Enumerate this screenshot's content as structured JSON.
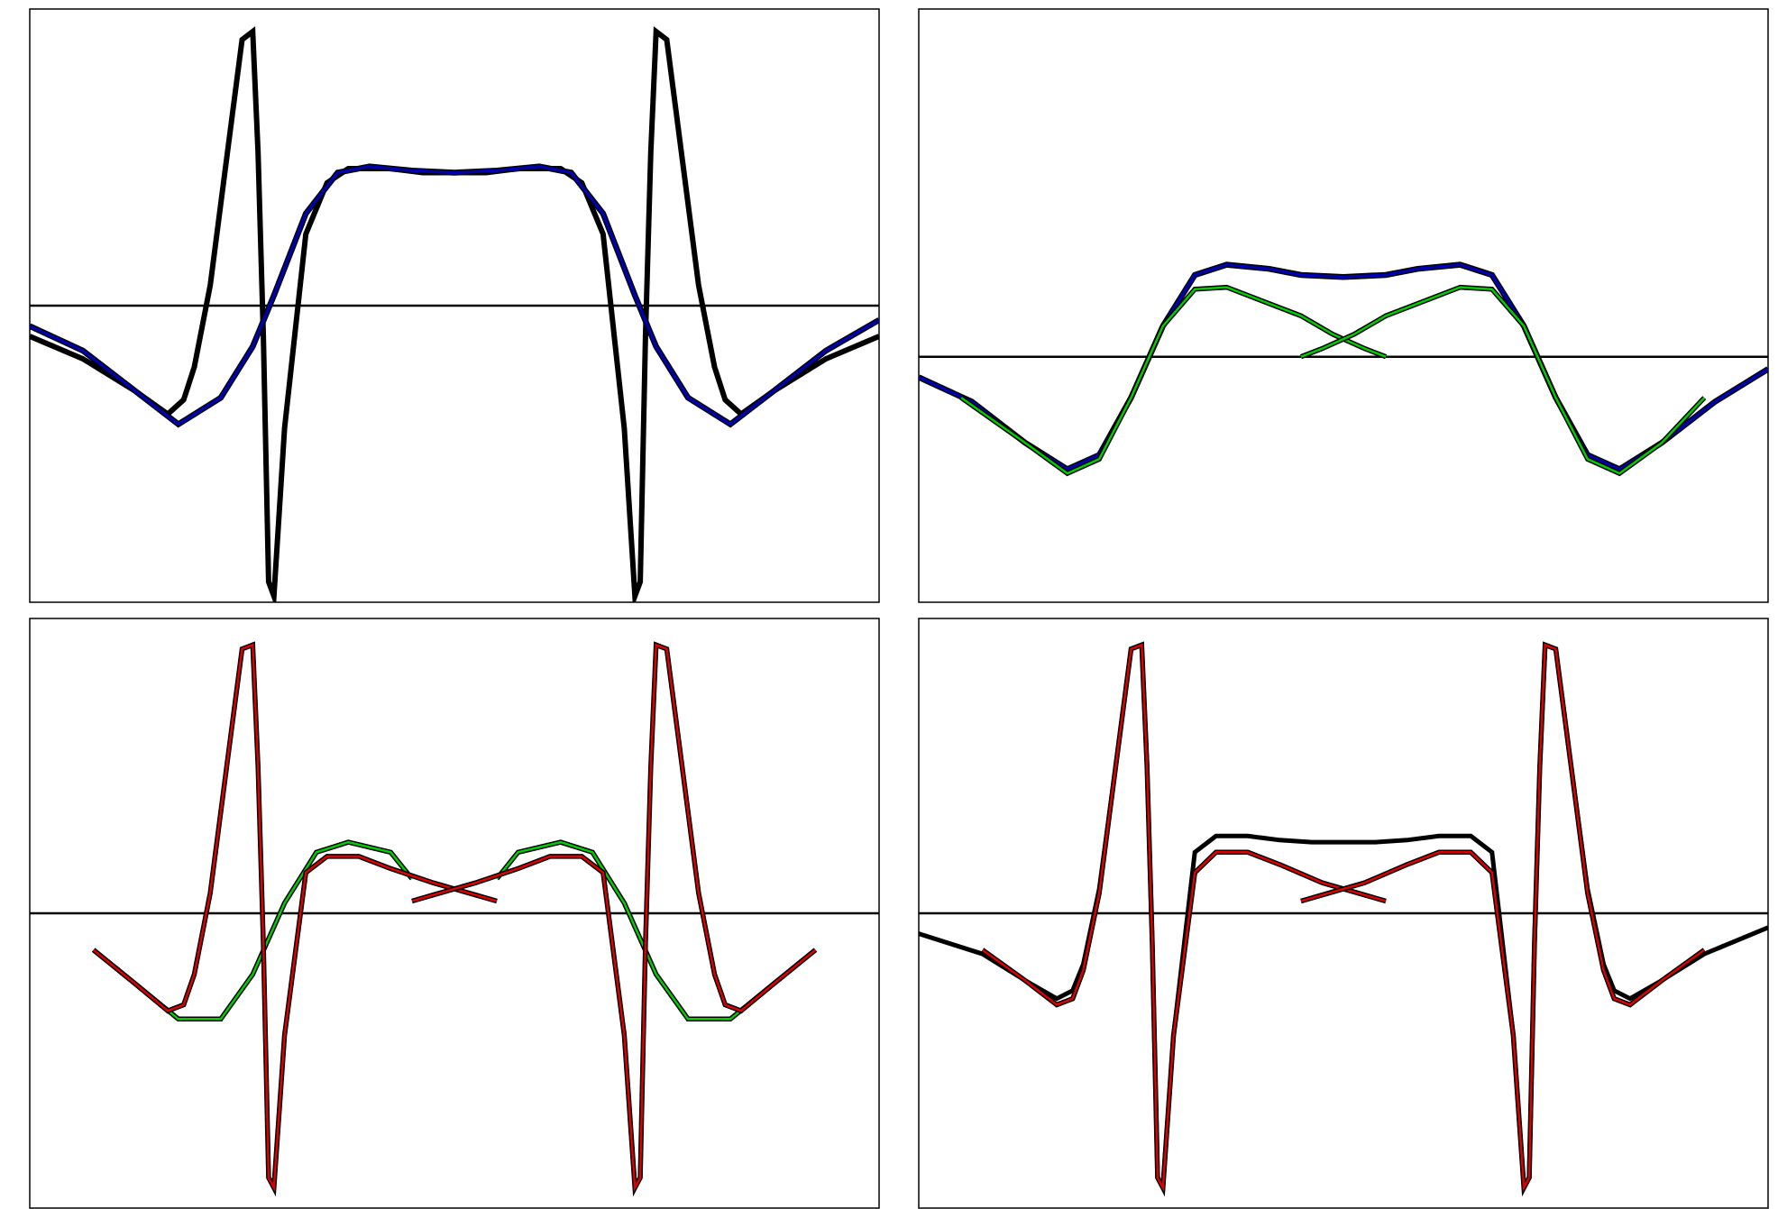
{
  "chart_data": [
    {
      "type": "line",
      "grid": false,
      "xlim": [
        -4,
        4
      ],
      "ylim": [
        -1.45,
        1.45
      ],
      "zero_line": true,
      "series": [
        {
          "color": "#000000",
          "stroke": "#000000",
          "width": 6,
          "points": [
            [
              -4,
              -0.15
            ],
            [
              -3.5,
              -0.26
            ],
            [
              -3,
              -0.42
            ],
            [
              -2.7,
              -0.53
            ],
            [
              -2.55,
              -0.46
            ],
            [
              -2.45,
              -0.3
            ],
            [
              -2.3,
              0.1
            ],
            [
              -2.15,
              0.7
            ],
            [
              -2.0,
              1.3
            ],
            [
              -1.9,
              1.34
            ],
            [
              -1.85,
              0.75
            ],
            [
              -1.8,
              -0.15
            ],
            [
              -1.75,
              -1.35
            ],
            [
              -1.7,
              -1.42
            ],
            [
              -1.6,
              -0.6
            ],
            [
              -1.4,
              0.35
            ],
            [
              -1.2,
              0.6
            ],
            [
              -1,
              0.67
            ],
            [
              -0.6,
              0.67
            ],
            [
              -0.3,
              0.65
            ],
            [
              0,
              0.65
            ],
            [
              0.3,
              0.65
            ],
            [
              0.6,
              0.67
            ],
            [
              1,
              0.67
            ],
            [
              1.2,
              0.6
            ],
            [
              1.4,
              0.35
            ],
            [
              1.6,
              -0.6
            ],
            [
              1.7,
              -1.42
            ],
            [
              1.75,
              -1.35
            ],
            [
              1.8,
              -0.15
            ],
            [
              1.85,
              0.75
            ],
            [
              1.9,
              1.34
            ],
            [
              2.0,
              1.3
            ],
            [
              2.15,
              0.7
            ],
            [
              2.3,
              0.1
            ],
            [
              2.45,
              -0.3
            ],
            [
              2.55,
              -0.46
            ],
            [
              2.7,
              -0.53
            ],
            [
              3,
              -0.42
            ],
            [
              3.5,
              -0.26
            ],
            [
              4,
              -0.15
            ]
          ]
        },
        {
          "color": "#0000aa",
          "stroke": "#000000",
          "width": 5,
          "points": [
            [
              -4,
              -0.1
            ],
            [
              -3.5,
              -0.22
            ],
            [
              -3,
              -0.42
            ],
            [
              -2.6,
              -0.58
            ],
            [
              -2.2,
              -0.45
            ],
            [
              -1.9,
              -0.2
            ],
            [
              -1.7,
              0.05
            ],
            [
              -1.4,
              0.45
            ],
            [
              -1.1,
              0.65
            ],
            [
              -0.8,
              0.68
            ],
            [
              -0.4,
              0.66
            ],
            [
              0,
              0.65
            ],
            [
              0.4,
              0.66
            ],
            [
              0.8,
              0.68
            ],
            [
              1.1,
              0.65
            ],
            [
              1.4,
              0.45
            ],
            [
              1.7,
              0.05
            ],
            [
              1.9,
              -0.2
            ],
            [
              2.2,
              -0.45
            ],
            [
              2.6,
              -0.58
            ],
            [
              3,
              -0.42
            ],
            [
              3.5,
              -0.22
            ],
            [
              4,
              -0.07
            ]
          ]
        }
      ]
    },
    {
      "type": "line",
      "grid": false,
      "xlim": [
        -4,
        4
      ],
      "ylim": [
        -1.2,
        1.7
      ],
      "zero_line": true,
      "series": [
        {
          "color": "#0000aa",
          "stroke": "#000000",
          "width": 5,
          "points": [
            [
              -4,
              -0.1
            ],
            [
              -3.5,
              -0.22
            ],
            [
              -3,
              -0.42
            ],
            [
              -2.6,
              -0.55
            ],
            [
              -2.3,
              -0.48
            ],
            [
              -2.0,
              -0.2
            ],
            [
              -1.7,
              0.15
            ],
            [
              -1.4,
              0.4
            ],
            [
              -1.1,
              0.45
            ],
            [
              -0.7,
              0.43
            ],
            [
              -0.4,
              0.4
            ],
            [
              0,
              0.39
            ],
            [
              0.4,
              0.4
            ],
            [
              0.7,
              0.43
            ],
            [
              1.1,
              0.45
            ],
            [
              1.4,
              0.4
            ],
            [
              1.7,
              0.15
            ],
            [
              2.0,
              -0.2
            ],
            [
              2.3,
              -0.48
            ],
            [
              2.6,
              -0.55
            ],
            [
              3,
              -0.42
            ],
            [
              3.5,
              -0.22
            ],
            [
              4,
              -0.06
            ]
          ]
        },
        {
          "color": "#00cc00",
          "stroke": "#000000",
          "width": 4,
          "points": [
            [
              -3.6,
              -0.2
            ],
            [
              -3,
              -0.42
            ],
            [
              -2.6,
              -0.57
            ],
            [
              -2.3,
              -0.5
            ],
            [
              -2.0,
              -0.2
            ],
            [
              -1.7,
              0.15
            ],
            [
              -1.4,
              0.33
            ],
            [
              -1.1,
              0.34
            ],
            [
              -0.8,
              0.28
            ],
            [
              -0.4,
              0.2
            ],
            [
              -0.1,
              0.11
            ],
            [
              0.2,
              0.04
            ],
            [
              0.4,
              0
            ]
          ]
        },
        {
          "color": "#00cc00",
          "stroke": "#000000",
          "width": 4,
          "points": [
            [
              -0.4,
              0
            ],
            [
              -0.2,
              0.04
            ],
            [
              0.1,
              0.11
            ],
            [
              0.4,
              0.2
            ],
            [
              0.8,
              0.28
            ],
            [
              1.1,
              0.34
            ],
            [
              1.4,
              0.33
            ],
            [
              1.7,
              0.15
            ],
            [
              2.0,
              -0.2
            ],
            [
              2.3,
              -0.5
            ],
            [
              2.6,
              -0.57
            ],
            [
              3,
              -0.42
            ],
            [
              3.4,
              -0.2
            ]
          ]
        }
      ]
    },
    {
      "type": "line",
      "grid": false,
      "xlim": [
        -4,
        4
      ],
      "ylim": [
        -1.45,
        1.45
      ],
      "zero_line": true,
      "series": [
        {
          "color": "#00cc00",
          "stroke": "#000000",
          "width": 4,
          "points": [
            [
              -3.4,
              -0.18
            ],
            [
              -3,
              -0.35
            ],
            [
              -2.6,
              -0.52
            ],
            [
              -2.2,
              -0.52
            ],
            [
              -1.9,
              -0.3
            ],
            [
              -1.6,
              0.05
            ],
            [
              -1.3,
              0.3
            ],
            [
              -1.0,
              0.35
            ],
            [
              -0.6,
              0.3
            ],
            [
              -0.4,
              0.17
            ]
          ]
        },
        {
          "color": "#00cc00",
          "stroke": "#000000",
          "width": 4,
          "points": [
            [
              0.4,
              0.17
            ],
            [
              0.6,
              0.3
            ],
            [
              1.0,
              0.35
            ],
            [
              1.3,
              0.3
            ],
            [
              1.6,
              0.05
            ],
            [
              1.9,
              -0.3
            ],
            [
              2.2,
              -0.52
            ],
            [
              2.6,
              -0.52
            ],
            [
              3,
              -0.35
            ],
            [
              3.4,
              -0.18
            ]
          ]
        },
        {
          "color": "#dd0000",
          "stroke": "#000000",
          "width": 4,
          "points": [
            [
              -3.4,
              -0.18
            ],
            [
              -3,
              -0.35
            ],
            [
              -2.7,
              -0.48
            ],
            [
              -2.55,
              -0.45
            ],
            [
              -2.45,
              -0.3
            ],
            [
              -2.3,
              0.1
            ],
            [
              -2.15,
              0.7
            ],
            [
              -2.0,
              1.3
            ],
            [
              -1.9,
              1.32
            ],
            [
              -1.85,
              0.72
            ],
            [
              -1.8,
              -0.15
            ],
            [
              -1.75,
              -1.3
            ],
            [
              -1.7,
              -1.35
            ],
            [
              -1.6,
              -0.6
            ],
            [
              -1.4,
              0.2
            ],
            [
              -1.2,
              0.28
            ],
            [
              -0.9,
              0.28
            ],
            [
              -0.6,
              0.22
            ],
            [
              -0.2,
              0.15
            ],
            [
              0.2,
              0.09
            ],
            [
              0.4,
              0.06
            ]
          ]
        },
        {
          "color": "#dd0000",
          "stroke": "#000000",
          "width": 4,
          "points": [
            [
              -0.4,
              0.06
            ],
            [
              -0.2,
              0.09
            ],
            [
              0.2,
              0.15
            ],
            [
              0.6,
              0.22
            ],
            [
              0.9,
              0.28
            ],
            [
              1.2,
              0.28
            ],
            [
              1.4,
              0.2
            ],
            [
              1.6,
              -0.6
            ],
            [
              1.7,
              -1.35
            ],
            [
              1.75,
              -1.3
            ],
            [
              1.8,
              -0.15
            ],
            [
              1.85,
              0.72
            ],
            [
              1.9,
              1.32
            ],
            [
              2.0,
              1.3
            ],
            [
              2.15,
              0.7
            ],
            [
              2.3,
              0.1
            ],
            [
              2.45,
              -0.3
            ],
            [
              2.55,
              -0.45
            ],
            [
              2.7,
              -0.48
            ],
            [
              3,
              -0.35
            ],
            [
              3.4,
              -0.18
            ]
          ]
        }
      ]
    },
    {
      "type": "line",
      "grid": false,
      "xlim": [
        -4,
        4
      ],
      "ylim": [
        -1.45,
        1.45
      ],
      "zero_line": true,
      "series": [
        {
          "color": "#000000",
          "stroke": "#000000",
          "width": 5,
          "points": [
            [
              -4,
              -0.1
            ],
            [
              -3.4,
              -0.2
            ],
            [
              -3,
              -0.33
            ],
            [
              -2.7,
              -0.42
            ],
            [
              -2.55,
              -0.38
            ],
            [
              -2.45,
              -0.25
            ],
            [
              -2.3,
              0.12
            ],
            [
              -2.15,
              0.7
            ],
            [
              -2.0,
              1.3
            ],
            [
              -1.9,
              1.32
            ],
            [
              -1.85,
              0.72
            ],
            [
              -1.8,
              -0.15
            ],
            [
              -1.75,
              -1.3
            ],
            [
              -1.7,
              -1.35
            ],
            [
              -1.6,
              -0.6
            ],
            [
              -1.4,
              0.3
            ],
            [
              -1.2,
              0.38
            ],
            [
              -0.9,
              0.38
            ],
            [
              -0.6,
              0.36
            ],
            [
              -0.3,
              0.35
            ],
            [
              0,
              0.35
            ],
            [
              0.3,
              0.35
            ],
            [
              0.6,
              0.36
            ],
            [
              0.9,
              0.38
            ],
            [
              1.2,
              0.38
            ],
            [
              1.4,
              0.3
            ],
            [
              1.6,
              -0.6
            ],
            [
              1.7,
              -1.35
            ],
            [
              1.75,
              -1.3
            ],
            [
              1.8,
              -0.15
            ],
            [
              1.85,
              0.72
            ],
            [
              1.9,
              1.32
            ],
            [
              2.0,
              1.3
            ],
            [
              2.15,
              0.7
            ],
            [
              2.3,
              0.12
            ],
            [
              2.45,
              -0.25
            ],
            [
              2.55,
              -0.38
            ],
            [
              2.7,
              -0.42
            ],
            [
              3,
              -0.33
            ],
            [
              3.4,
              -0.2
            ],
            [
              4,
              -0.07
            ]
          ]
        },
        {
          "color": "#dd0000",
          "stroke": "#000000",
          "width": 4,
          "points": [
            [
              -3.4,
              -0.18
            ],
            [
              -3,
              -0.33
            ],
            [
              -2.7,
              -0.45
            ],
            [
              -2.55,
              -0.42
            ],
            [
              -2.45,
              -0.28
            ],
            [
              -2.3,
              0.1
            ],
            [
              -2.15,
              0.7
            ],
            [
              -2.0,
              1.3
            ],
            [
              -1.9,
              1.32
            ],
            [
              -1.85,
              0.72
            ],
            [
              -1.8,
              -0.15
            ],
            [
              -1.75,
              -1.3
            ],
            [
              -1.7,
              -1.35
            ],
            [
              -1.6,
              -0.6
            ],
            [
              -1.4,
              0.2
            ],
            [
              -1.2,
              0.3
            ],
            [
              -0.9,
              0.3
            ],
            [
              -0.6,
              0.24
            ],
            [
              -0.2,
              0.15
            ],
            [
              0.2,
              0.09
            ],
            [
              0.4,
              0.06
            ]
          ]
        },
        {
          "color": "#dd0000",
          "stroke": "#000000",
          "width": 4,
          "points": [
            [
              -0.4,
              0.06
            ],
            [
              -0.2,
              0.09
            ],
            [
              0.2,
              0.15
            ],
            [
              0.6,
              0.24
            ],
            [
              0.9,
              0.3
            ],
            [
              1.2,
              0.3
            ],
            [
              1.4,
              0.2
            ],
            [
              1.6,
              -0.6
            ],
            [
              1.7,
              -1.35
            ],
            [
              1.75,
              -1.3
            ],
            [
              1.8,
              -0.15
            ],
            [
              1.85,
              0.72
            ],
            [
              1.9,
              1.32
            ],
            [
              2.0,
              1.3
            ],
            [
              2.15,
              0.7
            ],
            [
              2.3,
              0.1
            ],
            [
              2.45,
              -0.28
            ],
            [
              2.55,
              -0.42
            ],
            [
              2.7,
              -0.45
            ],
            [
              3,
              -0.33
            ],
            [
              3.4,
              -0.18
            ]
          ]
        }
      ]
    }
  ]
}
